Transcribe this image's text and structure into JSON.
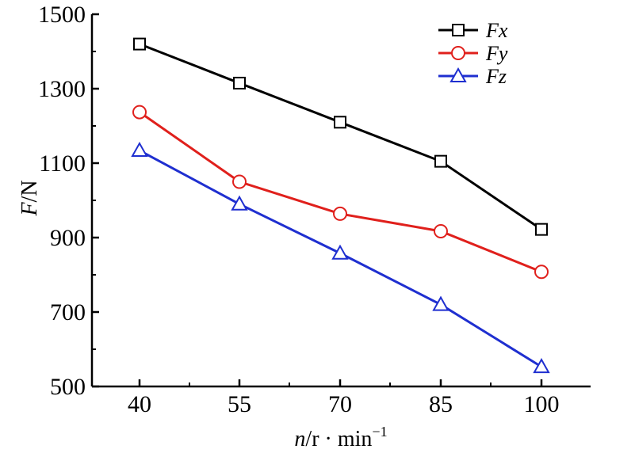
{
  "chart_data": {
    "type": "line",
    "x": [
      40,
      55,
      70,
      85,
      100
    ],
    "xlabel": "n/r · min⁻¹",
    "ylabel": "F/N",
    "ylim": [
      500,
      1500
    ],
    "yticks": [
      500,
      700,
      900,
      1100,
      1300,
      1500
    ],
    "grid": false,
    "legend_position": "top-right",
    "series": [
      {
        "name": "Fx",
        "marker": "square",
        "color": "#000000",
        "values": [
          1420,
          1315,
          1210,
          1105,
          922
        ]
      },
      {
        "name": "Fy",
        "marker": "circle",
        "color": "#e0201c",
        "values": [
          1237,
          1050,
          964,
          917,
          808
        ]
      },
      {
        "name": "Fz",
        "marker": "triangle",
        "color": "#1f2fd0",
        "values": [
          1134,
          990,
          858,
          720,
          553
        ]
      }
    ]
  }
}
